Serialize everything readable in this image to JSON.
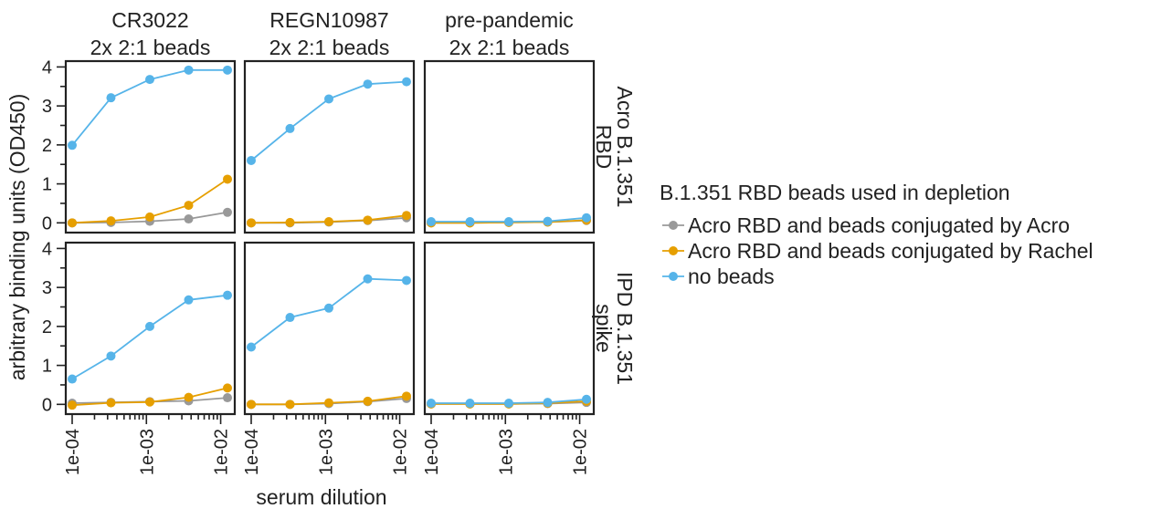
{
  "chart_data": {
    "type": "line",
    "facet_columns": [
      {
        "name": "CR3022",
        "sub": "2x 2:1 beads"
      },
      {
        "name": "REGN10987",
        "sub": "2x 2:1 beads"
      },
      {
        "name": "pre-pandemic",
        "sub": "2x 2:1 beads"
      }
    ],
    "facet_rows": [
      {
        "line1": "Acro B.1.351",
        "line2": "RBD"
      },
      {
        "line1": "IPD B.1.351",
        "line2": "spike"
      }
    ],
    "xlabel": "serum dilution",
    "ylabel": "arbitrary binding units (OD450)",
    "x_scale": "log",
    "xlim": [
      0.0001,
      0.01
    ],
    "x_ticks": [
      0.0001,
      0.001,
      0.01
    ],
    "x_tick_labels": [
      "1e-04",
      "1e-03",
      "1e-02"
    ],
    "ylim": [
      -0.25,
      4.15
    ],
    "y_ticks": [
      0,
      1,
      2,
      3,
      4
    ],
    "y_tick_labels": [
      "0",
      "1",
      "2",
      "3",
      "4"
    ],
    "x": [
      0.0001,
      0.000333,
      0.001111,
      0.003704,
      0.012346
    ],
    "legend": {
      "title": "B.1.351 RBD beads used in depletion",
      "position": "right"
    },
    "series": [
      {
        "name": "Acro RBD and beads conjugated by Acro",
        "color": "#999999"
      },
      {
        "name": "Acro RBD and beads conjugated by Rachel",
        "color": "#E69F00"
      },
      {
        "name": "no beads",
        "color": "#56B4E9"
      }
    ],
    "panels": [
      {
        "row": 0,
        "col": 0,
        "values": [
          [
            0.0,
            0.01,
            0.04,
            0.1,
            0.27
          ],
          [
            0.0,
            0.05,
            0.15,
            0.45,
            1.12
          ],
          [
            1.99,
            3.21,
            3.68,
            3.92,
            3.92
          ]
        ]
      },
      {
        "row": 0,
        "col": 1,
        "values": [
          [
            0.0,
            0.0,
            0.02,
            0.06,
            0.13
          ],
          [
            0.0,
            0.01,
            0.03,
            0.07,
            0.19
          ],
          [
            1.6,
            2.42,
            3.18,
            3.56,
            3.62
          ]
        ]
      },
      {
        "row": 0,
        "col": 2,
        "values": [
          [
            0.0,
            0.0,
            0.01,
            0.02,
            0.06
          ],
          [
            0.0,
            0.0,
            0.01,
            0.02,
            0.07
          ],
          [
            0.03,
            0.03,
            0.03,
            0.04,
            0.13
          ]
        ]
      },
      {
        "row": 1,
        "col": 0,
        "values": [
          [
            0.03,
            0.05,
            0.07,
            0.09,
            0.17
          ],
          [
            -0.02,
            0.04,
            0.06,
            0.18,
            0.42
          ],
          [
            0.65,
            1.24,
            2.0,
            2.68,
            2.8
          ]
        ]
      },
      {
        "row": 1,
        "col": 1,
        "values": [
          [
            0.0,
            0.0,
            0.02,
            0.07,
            0.15
          ],
          [
            0.0,
            0.0,
            0.04,
            0.08,
            0.21
          ],
          [
            1.47,
            2.23,
            2.47,
            3.22,
            3.18
          ]
        ]
      },
      {
        "row": 1,
        "col": 2,
        "values": [
          [
            0.01,
            0.01,
            0.01,
            0.02,
            0.05
          ],
          [
            0.01,
            0.01,
            0.01,
            0.03,
            0.08
          ],
          [
            0.03,
            0.03,
            0.03,
            0.05,
            0.13
          ]
        ]
      }
    ]
  }
}
